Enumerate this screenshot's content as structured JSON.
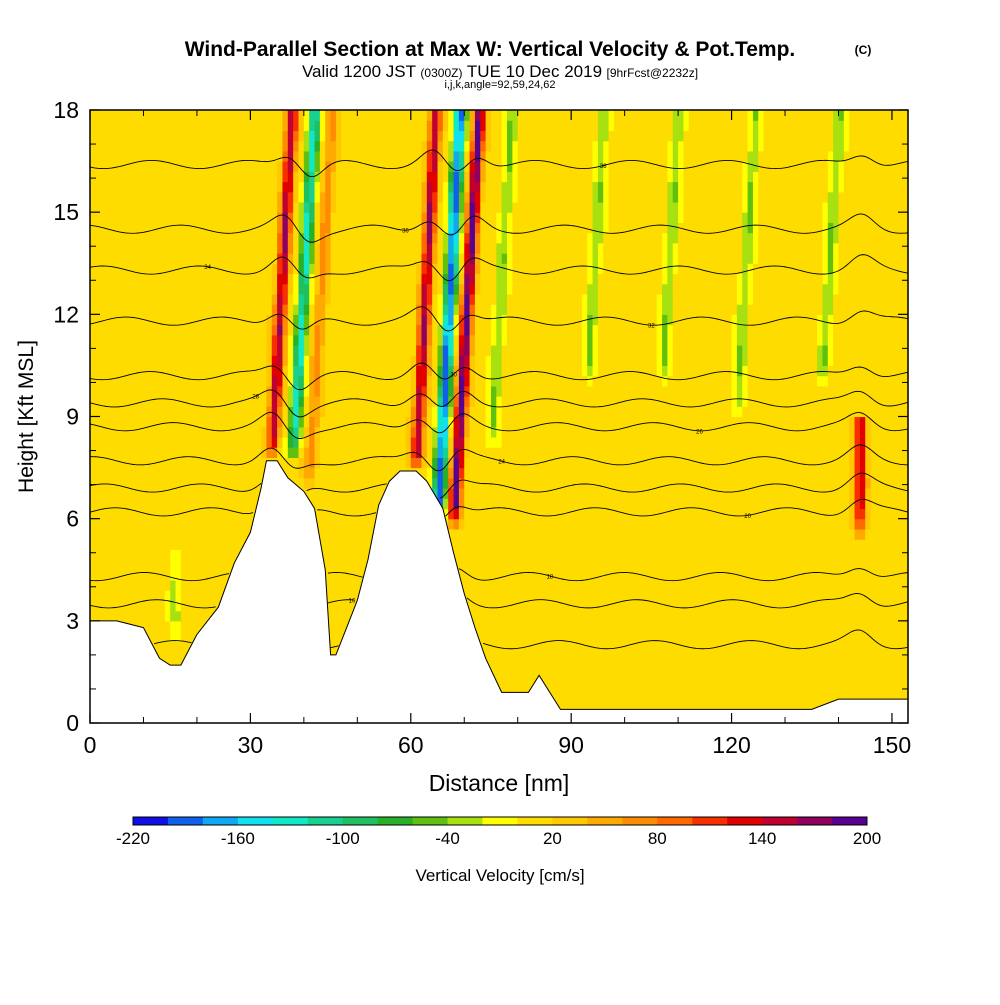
{
  "chart_data": {
    "type": "heatmap",
    "title": "Wind-Parallel Section at Max W: Vertical Velocity & Pot.Temp.",
    "title_mark": "(C)",
    "subtitle": {
      "prefix": "Valid 1200 JST",
      "zulu": "(0300Z)",
      "date": "TUE 10 Dec 2019",
      "forecast": "[9hrFcst@2232z]"
    },
    "subtitle2": "i,j,k,angle=92,59,24,62",
    "xlabel": "Distance [nm]",
    "ylabel": "Height [Kft MSL]",
    "xlim": [
      0,
      153
    ],
    "ylim": [
      0,
      18
    ],
    "x_ticks": [
      "0",
      "30",
      "60",
      "90",
      "120",
      "150"
    ],
    "y_ticks": [
      "0",
      "3",
      "6",
      "9",
      "12",
      "15",
      "18"
    ],
    "colorbar": {
      "label": "Vertical Velocity [cm/s]",
      "tick_labels": [
        "-220",
        "-160",
        "-100",
        "-40",
        "20",
        "80",
        "140",
        "200"
      ],
      "min": -220,
      "max": 200,
      "step": 20,
      "colors": [
        "#1010e6",
        "#1060ee",
        "#10a8f0",
        "#10e0f0",
        "#10e8c8",
        "#18d090",
        "#20c060",
        "#28b028",
        "#60c010",
        "#a8e010",
        "#ffff00",
        "#ffdc00",
        "#ffc800",
        "#ffaa00",
        "#ff8c00",
        "#ff6a00",
        "#f83000",
        "#e00000",
        "#c00030",
        "#900060",
        "#5a0090"
      ]
    },
    "terrain": [
      [
        0,
        3
      ],
      [
        5,
        3
      ],
      [
        10,
        2.8
      ],
      [
        13,
        1.9
      ],
      [
        15,
        1.7
      ],
      [
        17,
        1.7
      ],
      [
        20,
        2.6
      ],
      [
        24,
        3.4
      ],
      [
        27,
        4.7
      ],
      [
        30,
        5.6
      ],
      [
        32,
        6.9
      ],
      [
        33,
        7.7
      ],
      [
        35,
        7.7
      ],
      [
        37,
        7.2
      ],
      [
        40,
        6.8
      ],
      [
        42,
        6.3
      ],
      [
        44,
        4.5
      ],
      [
        45,
        2.0
      ],
      [
        46,
        2.0
      ],
      [
        48,
        2.8
      ],
      [
        50,
        3.6
      ],
      [
        52,
        4.8
      ],
      [
        54,
        6.4
      ],
      [
        56,
        7.1
      ],
      [
        58,
        7.4
      ],
      [
        61,
        7.4
      ],
      [
        63,
        7.1
      ],
      [
        66,
        6.3
      ],
      [
        68,
        5.0
      ],
      [
        70,
        3.8
      ],
      [
        72,
        2.8
      ],
      [
        74,
        1.9
      ],
      [
        77,
        0.9
      ],
      [
        82,
        0.9
      ],
      [
        84,
        1.4
      ],
      [
        86,
        0.9
      ],
      [
        88,
        0.4
      ],
      [
        135,
        0.4
      ],
      [
        140,
        0.7
      ],
      [
        153,
        0.7
      ]
    ],
    "w_features": [
      {
        "x": 34,
        "z0": 7.8,
        "z1": 18,
        "tilt": 0.38,
        "w": 150
      },
      {
        "x": 38,
        "z0": 7.8,
        "z1": 18,
        "tilt": 0.4,
        "w": -140
      },
      {
        "x": 41,
        "z0": 7.0,
        "z1": 18,
        "tilt": 0.4,
        "w": 60
      },
      {
        "x": 61,
        "z0": 7.4,
        "z1": 18,
        "tilt": 0.35,
        "w": 150
      },
      {
        "x": 65,
        "z0": 5.8,
        "z1": 18,
        "tilt": 0.35,
        "w": -200
      },
      {
        "x": 68,
        "z0": 5.8,
        "z1": 18,
        "tilt": 0.4,
        "w": 180
      },
      {
        "x": 75,
        "z0": 8,
        "z1": 18,
        "tilt": 0.4,
        "w": -50
      },
      {
        "x": 93,
        "z0": 10,
        "z1": 18,
        "tilt": 0.4,
        "w": -50
      },
      {
        "x": 107,
        "z0": 10,
        "z1": 18,
        "tilt": 0.4,
        "w": -50
      },
      {
        "x": 121,
        "z0": 9,
        "z1": 18,
        "tilt": 0.4,
        "w": -50
      },
      {
        "x": 137,
        "z0": 10,
        "z1": 18,
        "tilt": 0.4,
        "w": -50
      },
      {
        "x": 144,
        "z0": 5.5,
        "z1": 9,
        "tilt": 0.05,
        "w": 130
      },
      {
        "x": 16,
        "z0": 2.5,
        "z1": 5.0,
        "tilt": 0.0,
        "w": -40
      }
    ],
    "contour_levels": [
      {
        "z": 2.3,
        "label": "16"
      },
      {
        "z": 3.5,
        "label": "16"
      },
      {
        "z": 4.3,
        "label": "18"
      },
      {
        "z": 6.2,
        "label": "20"
      },
      {
        "z": 6.9,
        "label": "22"
      },
      {
        "z": 7.7,
        "label": "24"
      },
      {
        "z": 8.7,
        "label": "26"
      },
      {
        "z": 9.4,
        "label": "28"
      },
      {
        "z": 10.2,
        "label": "30"
      },
      {
        "z": 11.8,
        "label": "32"
      },
      {
        "z": 13.3,
        "label": "34"
      },
      {
        "z": 14.5,
        "label": "36"
      },
      {
        "z": 16.4,
        "label": "38"
      }
    ]
  }
}
